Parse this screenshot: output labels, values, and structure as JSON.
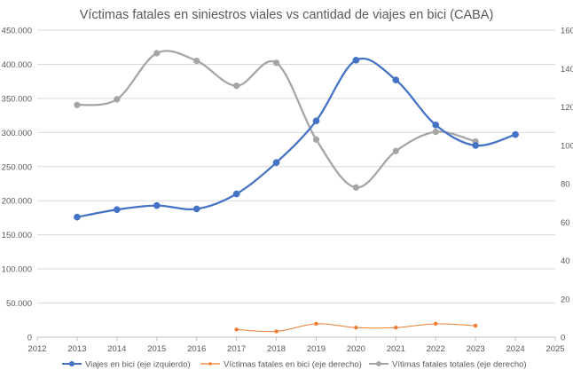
{
  "chart_data": {
    "type": "line",
    "title": "Víctimas fatales en siniestros viales vs cantidad de viajes en bici (CABA)",
    "x_axis": {
      "min": 2012,
      "max": 2025,
      "ticks": [
        2012,
        2013,
        2014,
        2015,
        2016,
        2017,
        2018,
        2019,
        2020,
        2021,
        2022,
        2023,
        2024,
        2025
      ]
    },
    "y_left": {
      "min": 0,
      "max": 450000,
      "ticks": [
        0,
        50000,
        100000,
        150000,
        200000,
        250000,
        300000,
        350000,
        400000,
        450000
      ],
      "tick_labels": [
        "0",
        "50.000",
        "100.000",
        "150.000",
        "200.000",
        "250.000",
        "300.000",
        "350.000",
        "400.000",
        "450.000"
      ]
    },
    "y_right": {
      "min": 0,
      "max": 160,
      "ticks": [
        0,
        20,
        40,
        60,
        80,
        100,
        120,
        140,
        160
      ],
      "tick_labels": [
        "0",
        "20",
        "40",
        "60",
        "80",
        "100",
        "120",
        "140",
        "160"
      ]
    },
    "grid": "horizontal",
    "legend_position": "bottom",
    "series": [
      {
        "name": "Viajes en bici (eje izquierdo)",
        "axis": "left",
        "color": "#4472c4",
        "x": [
          2013,
          2014,
          2015,
          2016,
          2017,
          2018,
          2019,
          2020,
          2021,
          2022,
          2023,
          2024
        ],
        "values": [
          176000,
          187000,
          193000,
          188000,
          210000,
          256000,
          317000,
          406000,
          377000,
          311000,
          281000,
          297000
        ]
      },
      {
        "name": "Víctimas fatales en bici (eje derecho)",
        "axis": "right",
        "color": "#ed7d31",
        "x": [
          2017,
          2018,
          2019,
          2020,
          2021,
          2022,
          2023
        ],
        "values": [
          4,
          3,
          7,
          5,
          5,
          7,
          6
        ]
      },
      {
        "name": "Vítimas fatales totales (eje derecho)",
        "axis": "right",
        "color": "#a5a5a5",
        "x": [
          2013,
          2014,
          2015,
          2016,
          2017,
          2018,
          2019,
          2020,
          2021,
          2022,
          2023
        ],
        "values": [
          121,
          124,
          148,
          144,
          131,
          143,
          103,
          78,
          97,
          107,
          102
        ]
      }
    ]
  }
}
